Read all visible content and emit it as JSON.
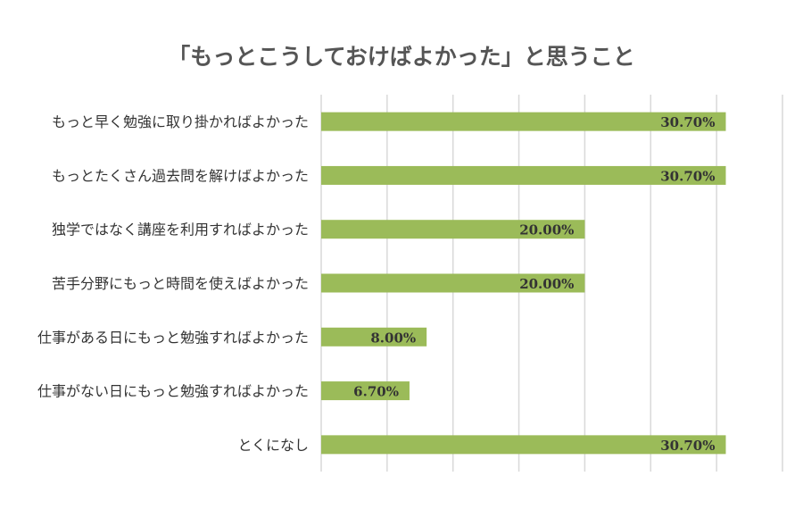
{
  "chart_data": {
    "type": "bar",
    "orientation": "horizontal",
    "title": "「もっとこうしておけばよかった」と思うこと",
    "categories": [
      "もっと早く勉強に取り掛かればよかった",
      "もっとたくさん過去問を解けばよかった",
      "独学ではなく講座を利用すればよかった",
      "苦手分野にもっと時間を使えばよかった",
      "仕事がある日にもっと勉強すればよかった",
      "仕事がない日にもっと勉強すればよかった",
      "とくになし"
    ],
    "values": [
      30.7,
      30.7,
      20.0,
      20.0,
      8.0,
      6.7,
      30.7
    ],
    "value_labels": [
      "30.70%",
      "30.70%",
      "20.00%",
      "20.00%",
      "8.00%",
      "6.70%",
      "30.70%"
    ],
    "xlim": [
      0,
      35
    ],
    "grid": true,
    "colors": {
      "bar": "#9bbb59",
      "grid": "#d9d9d9",
      "label": "#333333",
      "title": "#555555"
    }
  }
}
